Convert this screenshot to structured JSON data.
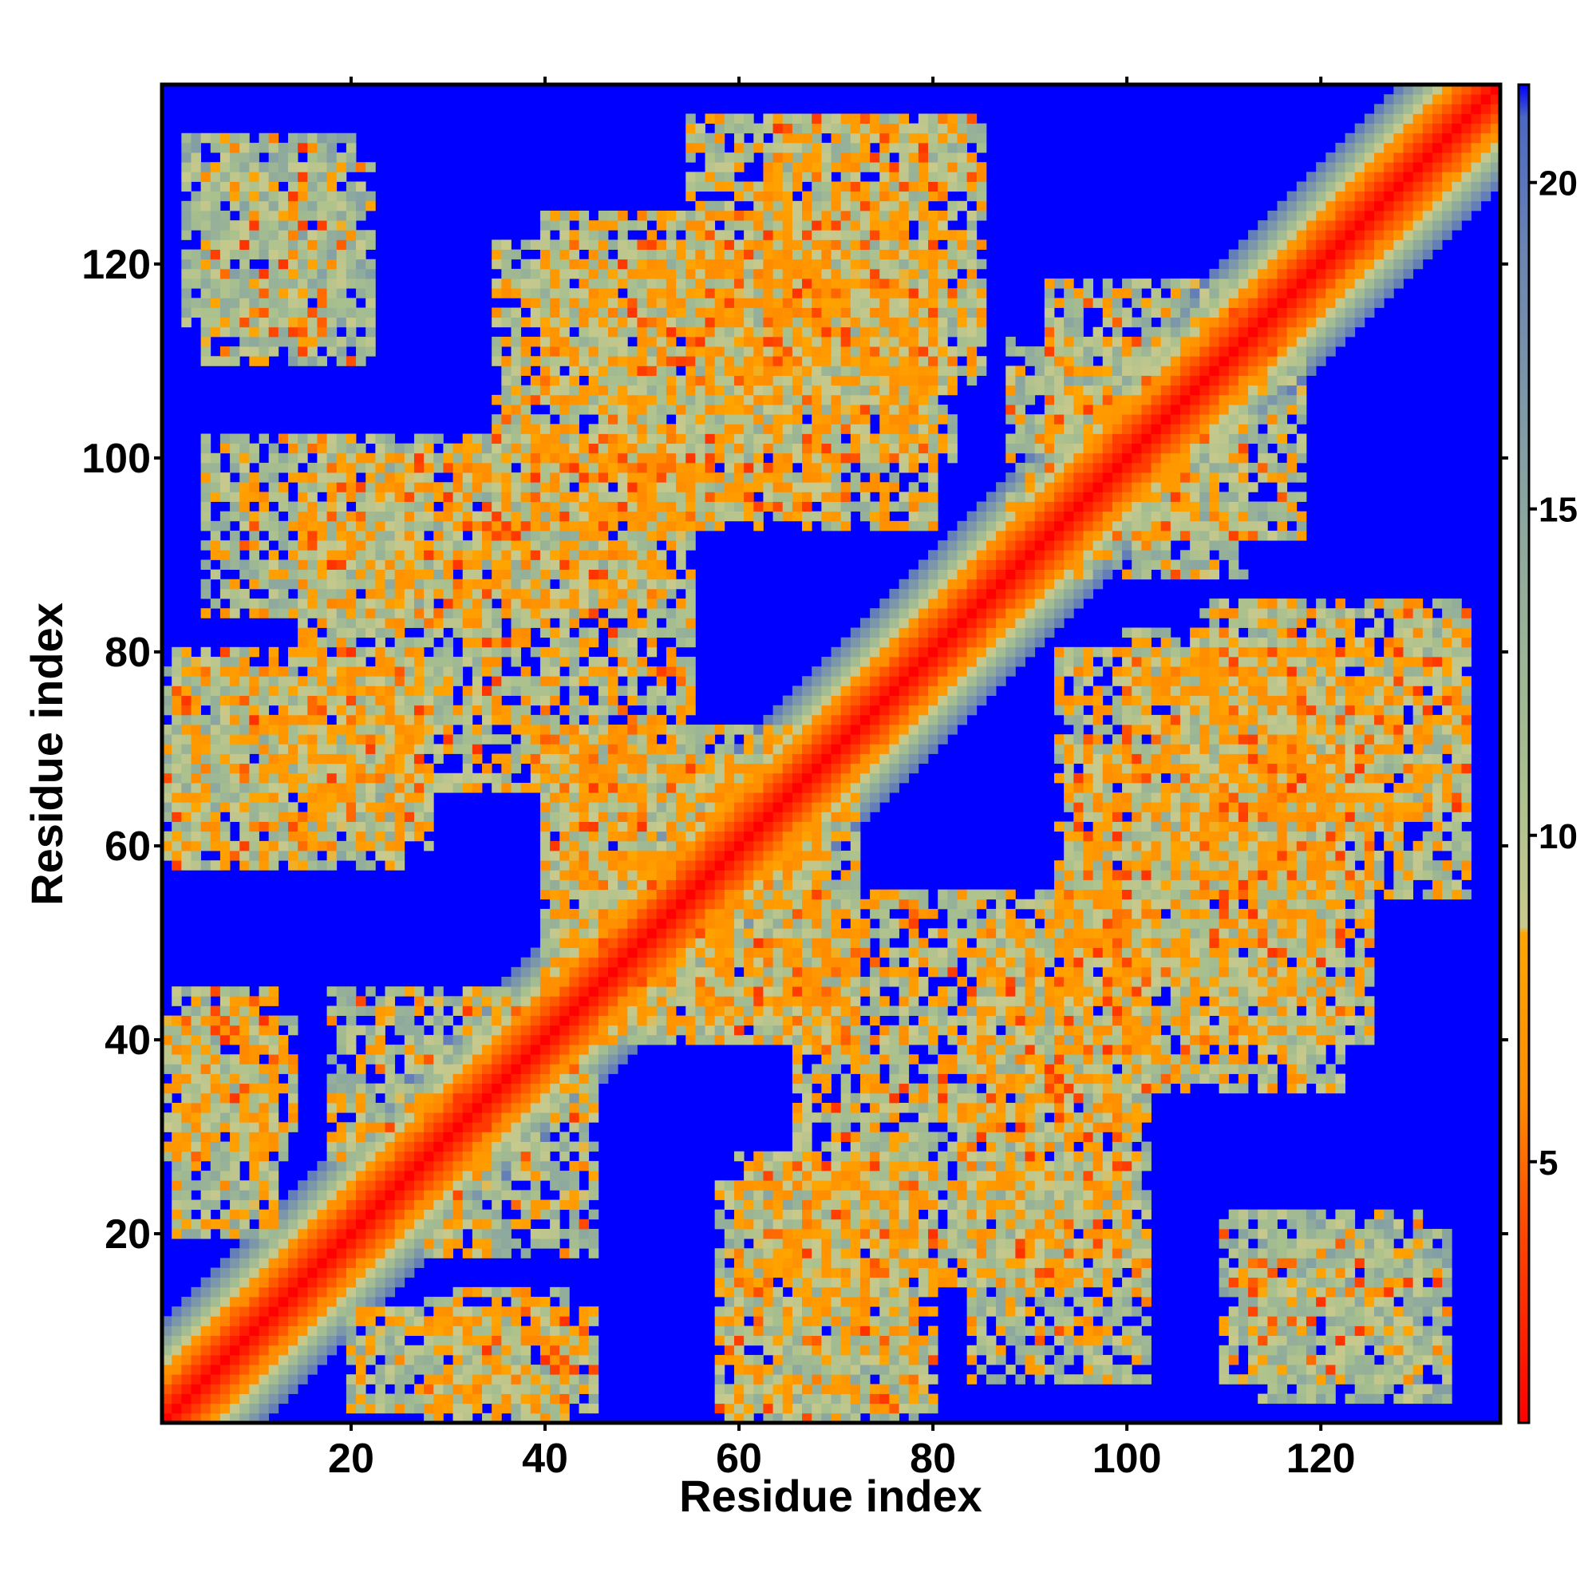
{
  "chart_data": {
    "type": "heatmap",
    "description_note": "",
    "xlabel": "Residue index",
    "ylabel": "Residue index",
    "n_residues": 138,
    "xlim": [
      1,
      138
    ],
    "ylim": [
      1,
      138
    ],
    "x_ticks": [
      20,
      40,
      60,
      80,
      100,
      120
    ],
    "y_ticks": [
      20,
      40,
      60,
      80,
      100,
      120
    ],
    "colorbar": {
      "ticks": [
        5,
        10,
        15,
        20
      ],
      "range": [
        1,
        21.5
      ],
      "stops": [
        {
          "value": 1,
          "color": "#ff0000"
        },
        {
          "value": 4,
          "color": "#ff4a00"
        },
        {
          "value": 6,
          "color": "#ff8c00"
        },
        {
          "value": 8.5,
          "color": "#ffa500"
        },
        {
          "value": 8.6,
          "color": "#c9c98c"
        },
        {
          "value": 11,
          "color": "#a8c08e"
        },
        {
          "value": 15,
          "color": "#8aa6a0"
        },
        {
          "value": 19,
          "color": "#6a84b4"
        },
        {
          "value": 21,
          "color": "#4a68c4"
        },
        {
          "value": 21.5,
          "color": "#0000ff"
        }
      ]
    },
    "background_value": 21.5,
    "diagonal_band": {
      "core_value": 1,
      "half_width_residues": 10
    },
    "contact_regions": [
      {
        "x": [
          3,
          20
        ],
        "y": [
          113,
          133
        ],
        "value": 12
      },
      {
        "x": [
          1,
          25
        ],
        "y": [
          58,
          78
        ],
        "value": 11
      },
      {
        "x": [
          1,
          14
        ],
        "y": [
          28,
          42
        ],
        "value": 10
      },
      {
        "x": [
          18,
          38
        ],
        "y": [
          28,
          45
        ],
        "value": 11
      },
      {
        "x": [
          5,
          52
        ],
        "y": [
          84,
          102
        ],
        "value": 11
      },
      {
        "x": [
          35,
          80
        ],
        "y": [
          93,
          122
        ],
        "value": 10
      },
      {
        "x": [
          55,
          85
        ],
        "y": [
          108,
          135
        ],
        "value": 10
      },
      {
        "x": [
          20,
          45
        ],
        "y": [
          2,
          12
        ],
        "value": 11
      },
      {
        "x": [
          60,
          80
        ],
        "y": [
          2,
          28
        ],
        "value": 10
      },
      {
        "x": [
          66,
          100
        ],
        "y": [
          15,
          55
        ],
        "value": 10
      },
      {
        "x": [
          95,
          125
        ],
        "y": [
          40,
          70
        ],
        "value": 10
      },
      {
        "x": [
          100,
          135
        ],
        "y": [
          63,
          82
        ],
        "value": 11
      },
      {
        "x": [
          110,
          130
        ],
        "y": [
          5,
          22
        ],
        "value": 12
      },
      {
        "x": [
          88,
          118
        ],
        "y": [
          92,
          112
        ],
        "value": 11
      },
      {
        "x": [
          42,
          72
        ],
        "y": [
          40,
          68
        ],
        "value": 10
      }
    ]
  }
}
